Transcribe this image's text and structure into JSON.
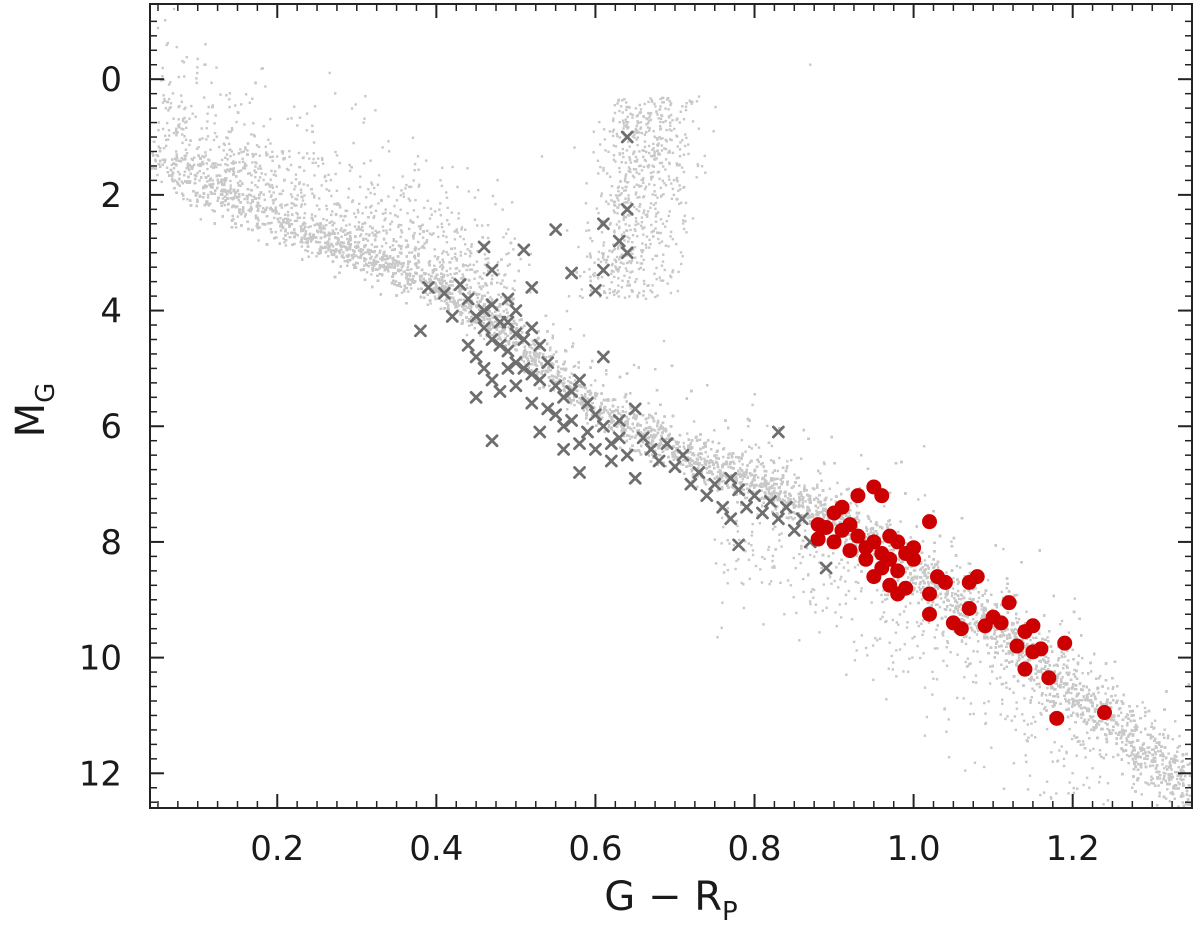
{
  "chart_data": {
    "type": "scatter",
    "title": "",
    "xlabel": {
      "main": "G − R",
      "sub": "P"
    },
    "ylabel": {
      "main": "M",
      "sub": "G"
    },
    "xlim": [
      0.04,
      1.35
    ],
    "ylim": [
      12.6,
      -1.3
    ],
    "y_inverted": true,
    "grid": false,
    "legend": "none",
    "x_ticks": [
      {
        "value": 0.2,
        "label": "0.2"
      },
      {
        "value": 0.4,
        "label": "0.4"
      },
      {
        "value": 0.6,
        "label": "0.6"
      },
      {
        "value": 0.8,
        "label": "0.8"
      },
      {
        "value": 1.0,
        "label": "1.0"
      },
      {
        "value": 1.2,
        "label": "1.2"
      }
    ],
    "y_ticks": [
      {
        "value": 0,
        "label": "0"
      },
      {
        "value": 2,
        "label": "2"
      },
      {
        "value": 4,
        "label": "4"
      },
      {
        "value": 6,
        "label": "6"
      },
      {
        "value": 8,
        "label": "8"
      },
      {
        "value": 10,
        "label": "10"
      },
      {
        "value": 12,
        "label": "12"
      }
    ],
    "series": [
      {
        "marker": "dot",
        "color": "#c8c8c8",
        "main_sequence_ridge": [
          [
            0.04,
            1.4
          ],
          [
            0.2,
            2.5
          ],
          [
            0.4,
            3.6
          ],
          [
            0.5,
            4.5
          ],
          [
            0.6,
            5.7
          ],
          [
            0.7,
            6.4
          ],
          [
            0.8,
            7.0
          ],
          [
            0.9,
            7.6
          ],
          [
            1.0,
            8.5
          ],
          [
            1.1,
            9.5
          ],
          [
            1.2,
            10.6
          ],
          [
            1.35,
            12.3
          ]
        ],
        "giant_branch_region": {
          "x": [
            0.58,
            0.72
          ],
          "y": [
            0.3,
            3.8
          ]
        },
        "approx_count": 15000
      },
      {
        "marker": "x",
        "color": "#6e6e6e",
        "points": [
          [
            0.38,
            4.35
          ],
          [
            0.39,
            3.6
          ],
          [
            0.41,
            3.7
          ],
          [
            0.42,
            4.1
          ],
          [
            0.43,
            3.55
          ],
          [
            0.44,
            4.6
          ],
          [
            0.44,
            3.8
          ],
          [
            0.45,
            4.1
          ],
          [
            0.45,
            4.8
          ],
          [
            0.46,
            2.9
          ],
          [
            0.46,
            4.0
          ],
          [
            0.46,
            4.3
          ],
          [
            0.46,
            5.0
          ],
          [
            0.47,
            3.3
          ],
          [
            0.47,
            3.9
          ],
          [
            0.47,
            4.5
          ],
          [
            0.47,
            5.2
          ],
          [
            0.47,
            6.25
          ],
          [
            0.48,
            4.2
          ],
          [
            0.48,
            4.6
          ],
          [
            0.48,
            5.4
          ],
          [
            0.49,
            3.8
          ],
          [
            0.49,
            4.2
          ],
          [
            0.49,
            4.7
          ],
          [
            0.49,
            5.0
          ],
          [
            0.5,
            4.0
          ],
          [
            0.5,
            4.4
          ],
          [
            0.5,
            4.9
          ],
          [
            0.5,
            5.3
          ],
          [
            0.51,
            2.95
          ],
          [
            0.51,
            4.5
          ],
          [
            0.51,
            5.0
          ],
          [
            0.52,
            3.6
          ],
          [
            0.52,
            4.3
          ],
          [
            0.52,
            5.1
          ],
          [
            0.52,
            5.6
          ],
          [
            0.53,
            4.6
          ],
          [
            0.53,
            5.2
          ],
          [
            0.54,
            4.9
          ],
          [
            0.54,
            5.7
          ],
          [
            0.55,
            2.6
          ],
          [
            0.55,
            5.3
          ],
          [
            0.55,
            5.8
          ],
          [
            0.56,
            5.5
          ],
          [
            0.56,
            6.0
          ],
          [
            0.57,
            5.4
          ],
          [
            0.57,
            5.9
          ],
          [
            0.57,
            3.35
          ],
          [
            0.58,
            5.2
          ],
          [
            0.58,
            6.3
          ],
          [
            0.58,
            6.8
          ],
          [
            0.59,
            5.6
          ],
          [
            0.59,
            6.1
          ],
          [
            0.6,
            5.8
          ],
          [
            0.6,
            6.4
          ],
          [
            0.6,
            3.65
          ],
          [
            0.61,
            4.8
          ],
          [
            0.61,
            6.0
          ],
          [
            0.61,
            2.5
          ],
          [
            0.61,
            3.3
          ],
          [
            0.62,
            6.3
          ],
          [
            0.62,
            6.6
          ],
          [
            0.63,
            2.8
          ],
          [
            0.63,
            5.9
          ],
          [
            0.63,
            6.2
          ],
          [
            0.64,
            3.0
          ],
          [
            0.64,
            2.25
          ],
          [
            0.64,
            1.0
          ],
          [
            0.64,
            6.5
          ],
          [
            0.65,
            5.7
          ],
          [
            0.65,
            6.9
          ],
          [
            0.66,
            6.2
          ],
          [
            0.67,
            6.4
          ],
          [
            0.68,
            6.6
          ],
          [
            0.69,
            6.3
          ],
          [
            0.7,
            6.7
          ],
          [
            0.71,
            6.5
          ],
          [
            0.72,
            7.0
          ],
          [
            0.73,
            6.8
          ],
          [
            0.74,
            7.2
          ],
          [
            0.75,
            7.0
          ],
          [
            0.76,
            7.4
          ],
          [
            0.77,
            6.9
          ],
          [
            0.77,
            7.6
          ],
          [
            0.78,
            7.1
          ],
          [
            0.78,
            8.05
          ],
          [
            0.79,
            7.4
          ],
          [
            0.8,
            7.2
          ],
          [
            0.81,
            7.5
          ],
          [
            0.82,
            7.3
          ],
          [
            0.83,
            6.1
          ],
          [
            0.83,
            7.6
          ],
          [
            0.84,
            7.4
          ],
          [
            0.85,
            7.8
          ],
          [
            0.86,
            7.6
          ],
          [
            0.87,
            8.0
          ],
          [
            0.89,
            8.45
          ],
          [
            0.53,
            6.1
          ],
          [
            0.56,
            6.4
          ],
          [
            0.45,
            5.5
          ]
        ]
      },
      {
        "marker": "circle",
        "color": "#cc0000",
        "points": [
          [
            0.88,
            7.7
          ],
          [
            0.88,
            7.95
          ],
          [
            0.89,
            7.75
          ],
          [
            0.9,
            7.5
          ],
          [
            0.9,
            8.0
          ],
          [
            0.91,
            7.8
          ],
          [
            0.91,
            7.4
          ],
          [
            0.92,
            8.15
          ],
          [
            0.92,
            7.7
          ],
          [
            0.93,
            7.2
          ],
          [
            0.93,
            7.9
          ],
          [
            0.94,
            8.1
          ],
          [
            0.94,
            8.3
          ],
          [
            0.95,
            7.05
          ],
          [
            0.95,
            8.0
          ],
          [
            0.95,
            8.6
          ],
          [
            0.96,
            7.2
          ],
          [
            0.96,
            8.2
          ],
          [
            0.96,
            8.45
          ],
          [
            0.97,
            7.9
          ],
          [
            0.97,
            8.3
          ],
          [
            0.97,
            8.75
          ],
          [
            0.98,
            8.0
          ],
          [
            0.98,
            8.5
          ],
          [
            0.98,
            8.9
          ],
          [
            0.99,
            8.2
          ],
          [
            0.99,
            8.8
          ],
          [
            1.0,
            8.1
          ],
          [
            1.0,
            8.3
          ],
          [
            1.02,
            7.65
          ],
          [
            1.02,
            8.9
          ],
          [
            1.02,
            9.25
          ],
          [
            1.03,
            8.6
          ],
          [
            1.04,
            8.7
          ],
          [
            1.05,
            9.4
          ],
          [
            1.06,
            9.5
          ],
          [
            1.07,
            8.7
          ],
          [
            1.07,
            9.15
          ],
          [
            1.08,
            8.6
          ],
          [
            1.09,
            9.45
          ],
          [
            1.1,
            9.3
          ],
          [
            1.11,
            9.4
          ],
          [
            1.12,
            9.05
          ],
          [
            1.13,
            9.8
          ],
          [
            1.14,
            9.55
          ],
          [
            1.14,
            10.2
          ],
          [
            1.15,
            9.45
          ],
          [
            1.15,
            9.9
          ],
          [
            1.16,
            9.85
          ],
          [
            1.17,
            10.35
          ],
          [
            1.18,
            11.05
          ],
          [
            1.19,
            9.75
          ],
          [
            1.24,
            10.95
          ]
        ]
      }
    ]
  }
}
